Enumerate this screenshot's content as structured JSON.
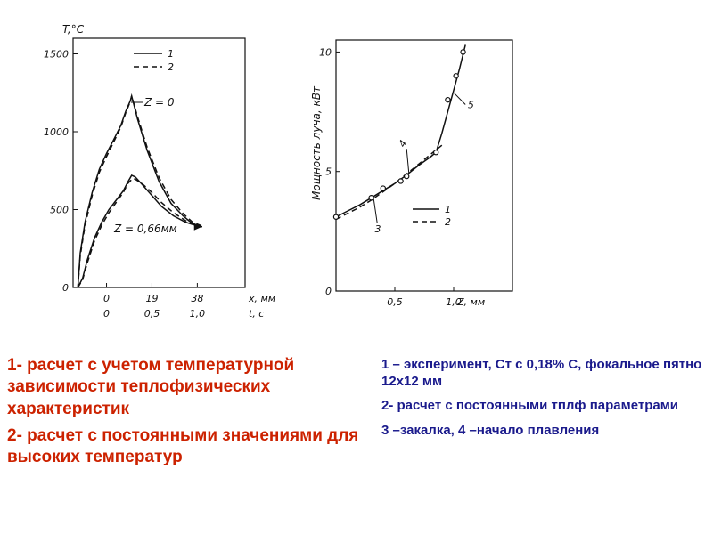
{
  "chart_data": [
    {
      "type": "line",
      "ylabel": "T,°C",
      "xlabel": "x, мм",
      "xlabel2": "t, с",
      "x_ticks": [
        "0",
        "19",
        "38"
      ],
      "x_ticks2": [
        "0",
        "0,5",
        "1,0"
      ],
      "y_ticks": [
        "0",
        "500",
        "1000",
        "1500"
      ],
      "xlim": [
        -14,
        58
      ],
      "ylim": [
        0,
        1600
      ],
      "legend": [
        "1",
        "2"
      ],
      "legend_position": "top-right",
      "annotations": [
        "Z = 0",
        "Z = 0,66мм"
      ],
      "series": [
        {
          "name": "1",
          "group": "Z = 0",
          "x": [
            -12,
            -11,
            -9,
            -6,
            -3,
            0,
            3,
            6,
            8,
            10,
            10.5,
            13,
            17,
            22,
            27,
            32,
            36,
            40
          ],
          "y": [
            0,
            220,
            420,
            610,
            760,
            860,
            950,
            1040,
            1130,
            1200,
            1230,
            1080,
            880,
            680,
            540,
            460,
            410,
            390
          ]
        },
        {
          "name": "2",
          "group": "Z = 0",
          "x": [
            -12,
            -11,
            -9,
            -6,
            -3,
            0,
            3,
            6,
            8,
            10,
            10.5,
            13,
            17,
            22,
            27,
            32,
            36,
            40
          ],
          "y": [
            0,
            200,
            400,
            590,
            740,
            840,
            935,
            1030,
            1120,
            1195,
            1230,
            1095,
            900,
            705,
            565,
            475,
            420,
            395
          ]
        },
        {
          "name": "1",
          "group": "Z = 0,66мм",
          "x": [
            -12,
            -10,
            -8,
            -5,
            -2,
            1,
            4,
            7,
            9,
            10.5,
            12,
            15,
            19,
            23,
            28,
            33,
            36,
            40
          ],
          "y": [
            0,
            60,
            180,
            320,
            420,
            500,
            560,
            620,
            680,
            720,
            710,
            660,
            590,
            520,
            460,
            420,
            405,
            390
          ]
        },
        {
          "name": "2",
          "group": "Z = 0,66мм",
          "x": [
            -12,
            -10,
            -8,
            -5,
            -2,
            1,
            4,
            7,
            9,
            11,
            12,
            15,
            19,
            23,
            28,
            33,
            36,
            40
          ],
          "y": [
            0,
            50,
            160,
            300,
            400,
            480,
            545,
            610,
            670,
            700,
            695,
            665,
            610,
            545,
            480,
            430,
            410,
            390
          ]
        }
      ]
    },
    {
      "type": "line",
      "ylabel": "Мощность луча, кВт",
      "xlabel": "Z, мм",
      "x_ticks": [
        "0,5",
        "1,0"
      ],
      "y_ticks": [
        "0",
        "5",
        "10"
      ],
      "xlim": [
        0,
        1.5
      ],
      "ylim": [
        0,
        10.5
      ],
      "legend": [
        "1",
        "2"
      ],
      "legend_position": "lower-right",
      "annotations": [
        "3",
        "4",
        "5"
      ],
      "series": [
        {
          "name": "1",
          "x": [
            0,
            0.1,
            0.2,
            0.3,
            0.4,
            0.5,
            0.6,
            0.7,
            0.8,
            0.85,
            0.9,
            0.95,
            1.0,
            1.05,
            1.1
          ],
          "y": [
            3.1,
            3.35,
            3.6,
            3.9,
            4.2,
            4.5,
            4.85,
            5.25,
            5.6,
            5.8,
            6.6,
            7.5,
            8.4,
            9.3,
            10.3
          ]
        },
        {
          "name": "2",
          "x": [
            0,
            0.1,
            0.2,
            0.3,
            0.4,
            0.5,
            0.6,
            0.7,
            0.8,
            0.9
          ],
          "y": [
            3.0,
            3.25,
            3.5,
            3.8,
            4.15,
            4.5,
            4.9,
            5.3,
            5.7,
            6.1
          ]
        }
      ],
      "points": {
        "x": [
          0,
          0.3,
          0.4,
          0.55,
          0.6,
          0.85,
          0.95,
          1.02,
          1.08
        ],
        "y": [
          3.1,
          3.9,
          4.3,
          4.6,
          4.8,
          5.8,
          8.0,
          9.0,
          10.0
        ]
      }
    }
  ],
  "captions": {
    "left": [
      "1- расчет с учетом температурной зависимости теплофизических характеристик",
      "2- расчет с постоянными значениями для высоких температур"
    ],
    "right": [
      "1 – эксперимент, Ст с 0,18% С, фокальное  пятно 12х12 мм",
      "2- расчет с постоянными тплф параметрами",
      "3 –закалка, 4 –начало плавления"
    ]
  }
}
